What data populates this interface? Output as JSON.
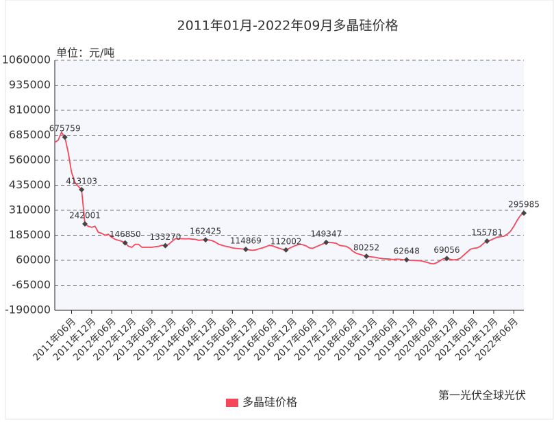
{
  "chart_data": {
    "type": "line",
    "title": "2011年01月-2022年09月多晶硅价格",
    "y_label": "单位：元/吨",
    "watermark": "第一光伏全球光伏",
    "categories": [
      null,
      null,
      null,
      null,
      null,
      "2011年06月",
      null,
      null,
      null,
      null,
      null,
      "2011年12月",
      null,
      null,
      null,
      null,
      null,
      "2012年06月",
      null,
      null,
      null,
      null,
      null,
      "2012年12月",
      null,
      null,
      null,
      null,
      null,
      "2013年06月",
      null,
      null,
      null,
      null,
      null,
      "2013年12月",
      null,
      null,
      null,
      null,
      null,
      "2014年06月",
      null,
      null,
      null,
      null,
      null,
      "2014年12月",
      null,
      null,
      null,
      null,
      null,
      "2015年06月",
      null,
      null,
      null,
      null,
      null,
      "2015年12月",
      null,
      null,
      null,
      null,
      null,
      "2016年06月",
      null,
      null,
      null,
      null,
      null,
      "2016年12月",
      null,
      null,
      null,
      null,
      null,
      "2017年06月",
      null,
      null,
      null,
      null,
      null,
      "2017年12月",
      null,
      null,
      null,
      null,
      null,
      "2018年06月",
      null,
      null,
      null,
      null,
      null,
      "2018年12月",
      null,
      null,
      null,
      null,
      null,
      "2019年06月",
      null,
      null,
      null,
      null,
      null,
      "2019年12月",
      null,
      null,
      null,
      null,
      null,
      "2020年06月",
      null,
      null,
      null,
      null,
      null,
      "2020年12月",
      null,
      null,
      null,
      null,
      null,
      "2021年06月",
      null,
      null,
      null,
      null,
      null,
      "2021年12月",
      null,
      null,
      null,
      null,
      null,
      "2022年06月",
      null,
      null,
      null
    ],
    "series": [
      {
        "name": "多晶硅价格",
        "color": "#f5475a",
        "values": [
          650000,
          660000,
          700000,
          675759,
          600000,
          500000,
          450000,
          430000,
          413103,
          242001,
          230000,
          225000,
          230000,
          200000,
          195000,
          185000,
          190000,
          175000,
          165000,
          160000,
          155000,
          146850,
          130000,
          125000,
          140000,
          140000,
          125000,
          125000,
          125000,
          125000,
          128000,
          130000,
          135000,
          133270,
          140000,
          155000,
          168000,
          168000,
          168000,
          167000,
          168000,
          166000,
          165000,
          160000,
          162000,
          162425,
          162000,
          158000,
          150000,
          140000,
          135000,
          130000,
          127000,
          122000,
          120000,
          118000,
          117000,
          114869,
          112000,
          110000,
          112000,
          118000,
          122000,
          128000,
          135000,
          132000,
          126000,
          120000,
          115000,
          112002,
          120000,
          128000,
          135000,
          140000,
          138000,
          132000,
          122000,
          120000,
          128000,
          135000,
          142000,
          149347,
          150000,
          148000,
          145000,
          135000,
          132000,
          130000,
          120000,
          105000,
          95000,
          90000,
          85000,
          80252,
          78000,
          76000,
          74000,
          70000,
          68000,
          67000,
          66000,
          64000,
          66000,
          65000,
          63000,
          62648,
          60000,
          60000,
          59000,
          58000,
          55000,
          50000,
          45000,
          42000,
          48000,
          58000,
          68000,
          69056,
          65000,
          62000,
          64000,
          70000,
          85000,
          100000,
          115000,
          120000,
          122000,
          130000,
          145000,
          155781,
          160000,
          168000,
          175000,
          178000,
          180000,
          190000,
          205000,
          230000,
          260000,
          285000,
          295985
        ],
        "value_labels": [
          null,
          null,
          null,
          "675759",
          null,
          null,
          null,
          null,
          "413103",
          "242001",
          null,
          null,
          null,
          null,
          null,
          null,
          null,
          null,
          null,
          null,
          null,
          "146850",
          null,
          null,
          null,
          null,
          null,
          null,
          null,
          null,
          null,
          null,
          null,
          "133270",
          null,
          null,
          null,
          null,
          null,
          null,
          null,
          null,
          null,
          null,
          null,
          "162425",
          null,
          null,
          null,
          null,
          null,
          null,
          null,
          null,
          null,
          null,
          null,
          "114869",
          null,
          null,
          null,
          null,
          null,
          null,
          null,
          null,
          null,
          null,
          null,
          "112002",
          null,
          null,
          null,
          null,
          null,
          null,
          null,
          null,
          null,
          null,
          null,
          "149347",
          null,
          null,
          null,
          null,
          null,
          null,
          null,
          null,
          null,
          null,
          null,
          "80252",
          null,
          null,
          null,
          null,
          null,
          null,
          null,
          null,
          null,
          null,
          null,
          "62648",
          null,
          null,
          null,
          null,
          null,
          null,
          null,
          null,
          null,
          null,
          null,
          "69056",
          null,
          null,
          null,
          null,
          null,
          null,
          null,
          null,
          null,
          null,
          null,
          "155781",
          null,
          null,
          null,
          null,
          null,
          null,
          null,
          null,
          null,
          null,
          "295985"
        ]
      }
    ],
    "ylim": [
      -190000,
      1060000
    ],
    "yticks": [
      -190000,
      -65000,
      60000,
      185000,
      310000,
      435000,
      560000,
      685000,
      810000,
      935000,
      1060000
    ],
    "grid": true,
    "legend": "bottom"
  }
}
